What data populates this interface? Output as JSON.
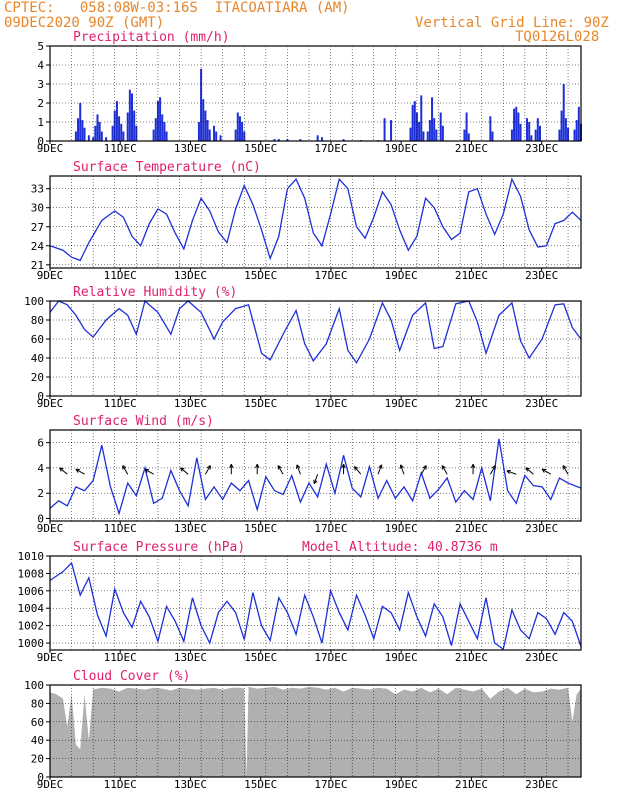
{
  "header": {
    "line1_left": "CPTEC:   058:08W-03:16S  ITACOATIARA (AM)",
    "line2_left": "09DEC2020 90Z (GMT)",
    "line1_right": "Vertical Grid Line: 90Z",
    "line2_right": "TQ0126L028"
  },
  "colors": {
    "header": "#e8862a",
    "title": "#e0206e",
    "series": "#1e2fd8",
    "cloud": "#b0b0b0",
    "grid": "#000000"
  },
  "x_labels": [
    "9DEC",
    "11DEC",
    "13DEC",
    "15DEC",
    "17DEC",
    "19DEC",
    "21DEC",
    "23DEC"
  ],
  "chart_data": [
    {
      "type": "bar",
      "title": "Precipitation (mm/h)",
      "ylim": [
        0,
        5
      ],
      "yticks": [
        0,
        1,
        2,
        3,
        4,
        5
      ],
      "x_unit": "days since 09DEC 90Z",
      "bars": [
        [
          0.6,
          0.5
        ],
        [
          0.65,
          1.2
        ],
        [
          0.7,
          2.0
        ],
        [
          0.75,
          1.1
        ],
        [
          0.8,
          0.7
        ],
        [
          0.9,
          0.3
        ],
        [
          1.0,
          0.2
        ],
        [
          1.05,
          0.8
        ],
        [
          1.1,
          1.4
        ],
        [
          1.15,
          1.0
        ],
        [
          1.2,
          0.5
        ],
        [
          1.3,
          0.2
        ],
        [
          1.45,
          0.8
        ],
        [
          1.5,
          1.6
        ],
        [
          1.55,
          2.1
        ],
        [
          1.6,
          1.3
        ],
        [
          1.65,
          0.9
        ],
        [
          1.7,
          0.5
        ],
        [
          1.8,
          1.5
        ],
        [
          1.85,
          2.7
        ],
        [
          1.9,
          2.5
        ],
        [
          1.95,
          1.6
        ],
        [
          2.0,
          0.8
        ],
        [
          2.4,
          0.6
        ],
        [
          2.45,
          1.2
        ],
        [
          2.5,
          2.1
        ],
        [
          2.55,
          2.3
        ],
        [
          2.6,
          1.4
        ],
        [
          2.65,
          1.0
        ],
        [
          2.7,
          0.5
        ],
        [
          3.45,
          1.0
        ],
        [
          3.5,
          3.8
        ],
        [
          3.55,
          2.2
        ],
        [
          3.6,
          1.6
        ],
        [
          3.65,
          1.1
        ],
        [
          3.7,
          0.6
        ],
        [
          3.8,
          0.8
        ],
        [
          3.85,
          0.5
        ],
        [
          3.95,
          0.3
        ],
        [
          4.3,
          0.6
        ],
        [
          4.35,
          1.5
        ],
        [
          4.4,
          1.3
        ],
        [
          4.45,
          1.0
        ],
        [
          4.5,
          0.5
        ],
        [
          5.2,
          0.1
        ],
        [
          5.3,
          0.1
        ],
        [
          5.5,
          0.1
        ],
        [
          5.8,
          0.1
        ],
        [
          6.2,
          0.3
        ],
        [
          6.3,
          0.2
        ],
        [
          6.8,
          0.1
        ],
        [
          7.2,
          0.05
        ],
        [
          7.6,
          0.05
        ],
        [
          7.75,
          1.2
        ],
        [
          7.9,
          1.1
        ],
        [
          8.35,
          0.7
        ],
        [
          8.4,
          1.9
        ],
        [
          8.45,
          2.1
        ],
        [
          8.5,
          1.5
        ],
        [
          8.55,
          1.0
        ],
        [
          8.6,
          2.4
        ],
        [
          8.65,
          0.5
        ],
        [
          8.75,
          0.5
        ],
        [
          8.8,
          1.1
        ],
        [
          8.85,
          2.3
        ],
        [
          8.9,
          1.2
        ],
        [
          8.95,
          0.6
        ],
        [
          9.05,
          1.5
        ],
        [
          9.1,
          0.8
        ],
        [
          9.6,
          0.6
        ],
        [
          9.65,
          1.5
        ],
        [
          9.7,
          0.4
        ],
        [
          10.2,
          1.3
        ],
        [
          10.25,
          0.5
        ],
        [
          10.7,
          0.6
        ],
        [
          10.75,
          1.7
        ],
        [
          10.8,
          1.8
        ],
        [
          10.85,
          1.5
        ],
        [
          10.9,
          0.9
        ],
        [
          11.05,
          1.2
        ],
        [
          11.1,
          1.0
        ],
        [
          11.15,
          0.3
        ],
        [
          11.25,
          0.6
        ],
        [
          11.3,
          1.2
        ],
        [
          11.35,
          0.8
        ],
        [
          11.8,
          0.6
        ],
        [
          11.85,
          1.6
        ],
        [
          11.9,
          3.0
        ],
        [
          11.95,
          1.2
        ],
        [
          12.0,
          0.7
        ],
        [
          12.15,
          0.6
        ],
        [
          12.2,
          1.1
        ],
        [
          12.25,
          1.8
        ],
        [
          12.3,
          0.9
        ]
      ]
    },
    {
      "type": "line",
      "title": "Surface Temperature (nC)",
      "ylim": [
        20.5,
        35
      ],
      "yticks": [
        21,
        24,
        27,
        30,
        33
      ],
      "x_unit": "days since 09DEC 90Z",
      "x": [
        0,
        0.3,
        0.5,
        0.7,
        0.9,
        1.2,
        1.5,
        1.7,
        1.9,
        2.1,
        2.3,
        2.5,
        2.7,
        2.9,
        3.1,
        3.3,
        3.5,
        3.7,
        3.9,
        4.1,
        4.3,
        4.5,
        4.7,
        4.9,
        5.1,
        5.3,
        5.5,
        5.7,
        5.9,
        6.1,
        6.3,
        6.5,
        6.7,
        6.9,
        7.1,
        7.3,
        7.5,
        7.7,
        7.9,
        8.1,
        8.3,
        8.5,
        8.7,
        8.9,
        9.1,
        9.3,
        9.5,
        9.7,
        9.9,
        10.1,
        10.3,
        10.5,
        10.7,
        10.9,
        11.1,
        11.3,
        11.5,
        11.7,
        11.9,
        12.1,
        12.3
      ],
      "y": [
        24,
        23.3,
        22.2,
        21.7,
        24.5,
        28,
        29.5,
        28.5,
        25.5,
        24,
        27.5,
        29.8,
        29,
        26,
        23.5,
        28,
        31.5,
        29.5,
        26.2,
        24.5,
        29.8,
        33.5,
        30.5,
        26.5,
        22,
        25.5,
        33,
        34.5,
        31.5,
        26,
        24,
        29,
        34.5,
        33,
        27,
        25.2,
        28.5,
        32.5,
        30.5,
        26.5,
        23.3,
        25.5,
        31.5,
        30,
        27,
        25,
        26,
        32.5,
        33,
        29,
        25.8,
        29,
        34.5,
        31.8,
        26.5,
        23.8,
        24,
        27.5,
        28,
        29.3,
        28
      ]
    },
    {
      "type": "line",
      "title": "Relative Humidity (%)",
      "ylim": [
        0,
        100
      ],
      "yticks": [
        0,
        20,
        40,
        60,
        80,
        100
      ],
      "x_unit": "days since 09DEC 90Z",
      "x": [
        0,
        0.2,
        0.4,
        0.6,
        0.8,
        1.0,
        1.3,
        1.6,
        1.8,
        2.0,
        2.2,
        2.5,
        2.8,
        3.0,
        3.2,
        3.5,
        3.8,
        4.0,
        4.3,
        4.6,
        4.9,
        5.1,
        5.4,
        5.7,
        5.9,
        6.1,
        6.4,
        6.7,
        6.9,
        7.1,
        7.4,
        7.7,
        7.9,
        8.1,
        8.4,
        8.7,
        8.9,
        9.1,
        9.4,
        9.7,
        9.9,
        10.1,
        10.4,
        10.7,
        10.9,
        11.1,
        11.4,
        11.7,
        11.9,
        12.1,
        12.3
      ],
      "y": [
        88,
        100,
        96,
        85,
        70,
        62,
        80,
        92,
        85,
        65,
        100,
        88,
        65,
        92,
        100,
        88,
        60,
        78,
        92,
        96,
        45,
        38,
        65,
        90,
        55,
        37,
        55,
        92,
        48,
        35,
        60,
        98,
        80,
        48,
        85,
        98,
        50,
        52,
        97,
        100,
        78,
        45,
        85,
        98,
        58,
        40,
        60,
        96,
        97,
        72,
        60
      ]
    },
    {
      "type": "line",
      "title": "Surface Wind (m/s)",
      "ylim": [
        -0.2,
        7
      ],
      "yticks": [
        0,
        2,
        4,
        6
      ],
      "x_unit": "days since 09DEC 90Z",
      "x": [
        0,
        0.2,
        0.4,
        0.6,
        0.8,
        1.0,
        1.2,
        1.4,
        1.6,
        1.8,
        2.0,
        2.2,
        2.4,
        2.6,
        2.8,
        3.0,
        3.2,
        3.4,
        3.6,
        3.8,
        4.0,
        4.2,
        4.4,
        4.6,
        4.8,
        5.0,
        5.2,
        5.4,
        5.6,
        5.8,
        6.0,
        6.2,
        6.4,
        6.6,
        6.8,
        7.0,
        7.2,
        7.4,
        7.6,
        7.8,
        8.0,
        8.2,
        8.4,
        8.6,
        8.8,
        9.0,
        9.2,
        9.4,
        9.6,
        9.8,
        10.0,
        10.2,
        10.4,
        10.6,
        10.8,
        11.0,
        11.2,
        11.4,
        11.6,
        11.8,
        12.0,
        12.3
      ],
      "y": [
        0.8,
        1.4,
        1.0,
        2.5,
        2.2,
        3.0,
        5.8,
        2.5,
        0.4,
        2.8,
        1.8,
        4.0,
        1.2,
        1.6,
        3.8,
        2.2,
        1.0,
        4.8,
        1.5,
        2.5,
        1.5,
        2.8,
        2.2,
        3.0,
        0.7,
        3.3,
        2.2,
        1.9,
        3.4,
        1.3,
        2.8,
        1.7,
        4.3,
        2.0,
        5.0,
        2.4,
        1.7,
        4.1,
        1.6,
        3.0,
        1.6,
        2.5,
        1.4,
        3.6,
        1.6,
        2.3,
        3.2,
        1.3,
        2.2,
        1.5,
        4.0,
        1.4,
        6.3,
        2.2,
        1.2,
        3.4,
        2.6,
        2.5,
        1.5,
        3.2,
        2.8,
        2.4
      ],
      "arrows": [
        [
          0.4,
          -140
        ],
        [
          0.8,
          -150
        ],
        [
          1.8,
          -120
        ],
        [
          2.4,
          -150
        ],
        [
          3.2,
          -140
        ],
        [
          3.6,
          -60
        ],
        [
          4.2,
          -90
        ],
        [
          4.8,
          -90
        ],
        [
          5.4,
          -120
        ],
        [
          5.8,
          -110
        ],
        [
          6.2,
          110
        ],
        [
          6.8,
          -90
        ],
        [
          7.2,
          -130
        ],
        [
          7.6,
          -70
        ],
        [
          8.2,
          -110
        ],
        [
          8.6,
          -60
        ],
        [
          9.2,
          -120
        ],
        [
          9.8,
          -90
        ],
        [
          10.2,
          -60
        ],
        [
          10.8,
          -160
        ],
        [
          11.2,
          -140
        ],
        [
          11.6,
          -150
        ],
        [
          12.0,
          -120
        ]
      ]
    },
    {
      "type": "line",
      "title": "Surface Pressure (hPa)",
      "annotation": "Model Altitude: 40.8736  m",
      "ylim": [
        999.2,
        1010
      ],
      "yticks": [
        1000,
        1002,
        1004,
        1006,
        1008,
        1010
      ],
      "x_unit": "days since 09DEC 90Z",
      "x": [
        0,
        0.3,
        0.5,
        0.7,
        0.9,
        1.1,
        1.3,
        1.5,
        1.7,
        1.9,
        2.1,
        2.3,
        2.5,
        2.7,
        2.9,
        3.1,
        3.3,
        3.5,
        3.7,
        3.9,
        4.1,
        4.3,
        4.5,
        4.7,
        4.9,
        5.1,
        5.3,
        5.5,
        5.7,
        5.9,
        6.1,
        6.3,
        6.5,
        6.7,
        6.9,
        7.1,
        7.3,
        7.5,
        7.7,
        7.9,
        8.1,
        8.3,
        8.5,
        8.7,
        8.9,
        9.1,
        9.3,
        9.5,
        9.7,
        9.9,
        10.1,
        10.3,
        10.5,
        10.7,
        10.9,
        11.1,
        11.3,
        11.5,
        11.7,
        11.9,
        12.1,
        12.3
      ],
      "y": [
        1007.2,
        1008.2,
        1009.2,
        1005.5,
        1007.5,
        1003.2,
        1000.8,
        1006.2,
        1003.5,
        1001.8,
        1004.8,
        1003.0,
        1000.2,
        1004.2,
        1002.5,
        1000.2,
        1005.2,
        1002.0,
        1000.0,
        1003.5,
        1004.8,
        1003.5,
        1000.4,
        1005.8,
        1002.0,
        1000.3,
        1005.2,
        1003.5,
        1001.0,
        1005.5,
        1003.0,
        1000.0,
        1006.0,
        1003.5,
        1001.5,
        1005.5,
        1003.2,
        1000.5,
        1004.2,
        1003.5,
        1001.5,
        1005.8,
        1003.0,
        1000.8,
        1004.5,
        1003.0,
        999.7,
        1004.5,
        1002.5,
        1000.5,
        1005.2,
        1000.0,
        999.3,
        1003.8,
        1001.5,
        1000.5,
        1003.5,
        1002.8,
        1001.0,
        1003.5,
        1002.5,
        999.6
      ]
    },
    {
      "type": "area",
      "title": "Cloud Cover (%)",
      "ylim": [
        0,
        100
      ],
      "yticks": [
        0,
        20,
        40,
        60,
        80,
        100
      ],
      "x_unit": "days since 09DEC 90Z",
      "x": [
        0,
        0.15,
        0.3,
        0.4,
        0.5,
        0.6,
        0.7,
        0.8,
        0.9,
        1.0,
        1.2,
        1.4,
        1.6,
        1.8,
        2.0,
        2.2,
        2.4,
        2.6,
        2.8,
        3.0,
        3.2,
        3.4,
        3.6,
        3.8,
        4.0,
        4.2,
        4.4,
        4.5,
        4.55,
        4.6,
        4.8,
        5.0,
        5.2,
        5.4,
        5.6,
        5.8,
        6.0,
        6.2,
        6.4,
        6.6,
        6.8,
        7.0,
        7.2,
        7.4,
        7.6,
        7.8,
        8.0,
        8.2,
        8.4,
        8.6,
        8.8,
        9.0,
        9.2,
        9.4,
        9.6,
        9.8,
        10.0,
        10.2,
        10.4,
        10.6,
        10.8,
        11.0,
        11.2,
        11.4,
        11.6,
        11.8,
        12.0,
        12.1,
        12.2,
        12.3
      ],
      "y": [
        92,
        90,
        85,
        55,
        90,
        35,
        30,
        90,
        40,
        95,
        97,
        96,
        93,
        97,
        96,
        95,
        97,
        96,
        94,
        97,
        96,
        95,
        96,
        97,
        95,
        97,
        97,
        96,
        0,
        98,
        96,
        97,
        98,
        95,
        97,
        96,
        98,
        97,
        95,
        97,
        93,
        97,
        96,
        95,
        97,
        96,
        90,
        95,
        93,
        97,
        92,
        96,
        90,
        97,
        95,
        93,
        96,
        85,
        93,
        97,
        90,
        96,
        92,
        93,
        96,
        95,
        97,
        60,
        90,
        96
      ]
    }
  ]
}
